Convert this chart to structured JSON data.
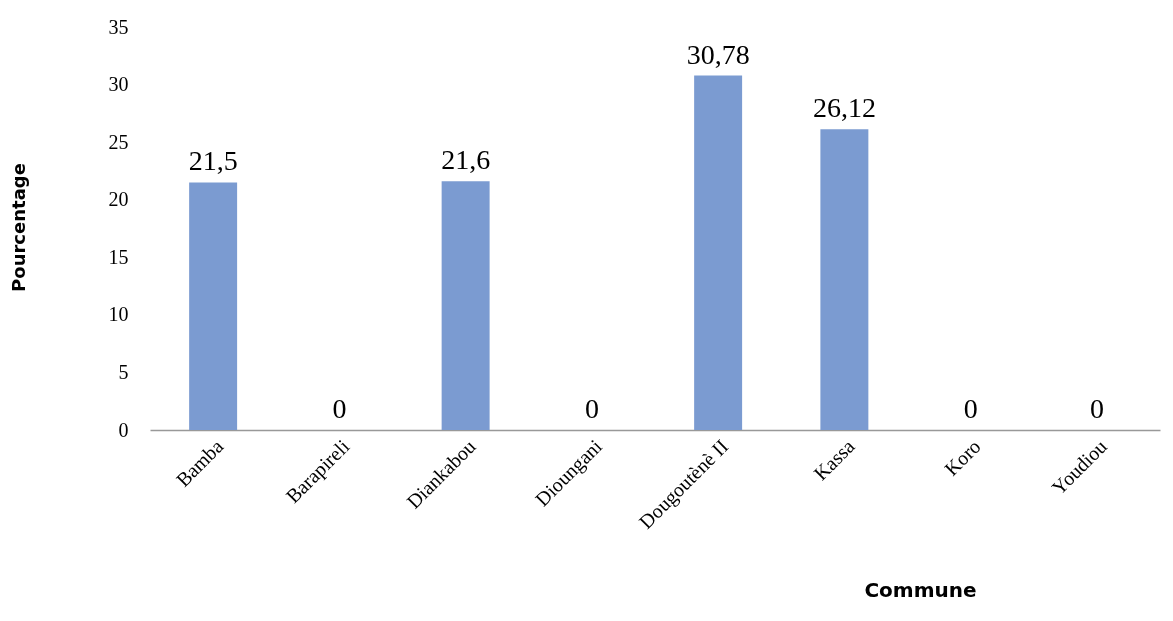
{
  "chart_data": {
    "type": "bar",
    "xlabel": "Commune",
    "ylabel": "Pourcentage",
    "categories": [
      "Bamba",
      "Barapireli",
      "Diankabou",
      "Dioungani",
      "Dougoutènè II",
      "Kassa",
      "Koro",
      "Youdiou"
    ],
    "values": [
      21.5,
      0,
      21.6,
      0,
      30.78,
      26.12,
      0,
      0
    ],
    "value_labels": [
      "21,5",
      "0",
      "21,6",
      "0",
      "30,78",
      "26,12",
      "0",
      "0"
    ],
    "color": "#7b9bd1",
    "ylim": [
      0,
      35
    ],
    "yticks": [
      0,
      5,
      10,
      15,
      20,
      25,
      30,
      35
    ],
    "grid": false
  }
}
